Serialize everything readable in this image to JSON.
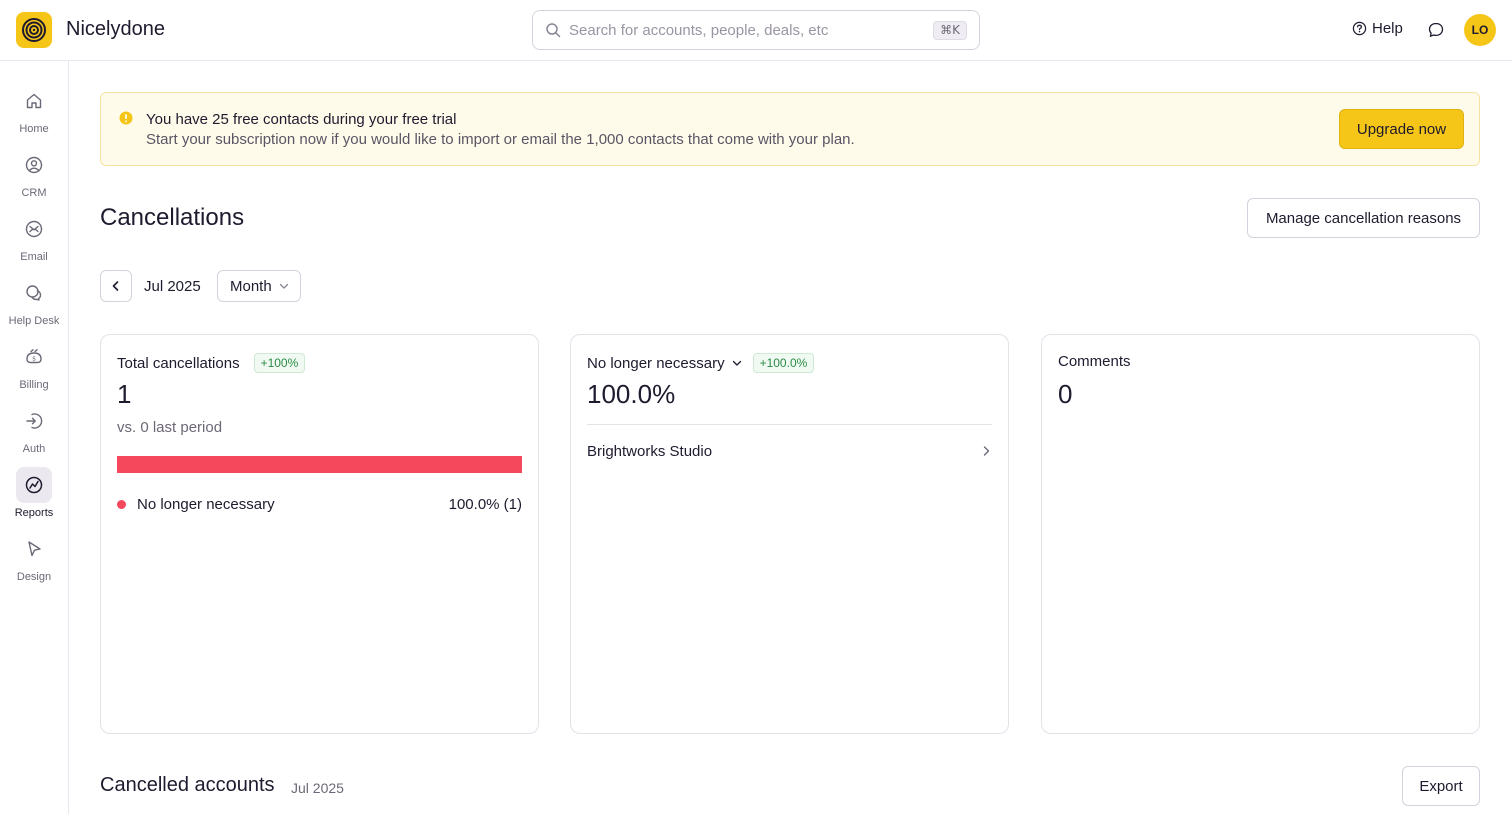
{
  "app": {
    "name": "Nicelydone",
    "logo_icon": "concentric-spiral-icon",
    "brand_color": "#f5c518"
  },
  "header": {
    "search": {
      "placeholder": "Search for accounts, people, deals, etc",
      "value": "",
      "shortcut": "⌘K"
    },
    "help_label": "Help",
    "avatar_initials": "LO"
  },
  "sidebar": {
    "items": [
      {
        "label": "Home",
        "icon": "home-icon",
        "active": false
      },
      {
        "label": "CRM",
        "icon": "user-circle-icon",
        "active": false
      },
      {
        "label": "Email",
        "icon": "mail-icon",
        "active": false
      },
      {
        "label": "Help Desk",
        "icon": "chat-bubbles-icon",
        "active": false
      },
      {
        "label": "Billing",
        "icon": "billing-icon",
        "active": false
      },
      {
        "label": "Auth",
        "icon": "login-icon",
        "active": false
      },
      {
        "label": "Reports",
        "icon": "chart-icon",
        "active": true
      },
      {
        "label": "Design",
        "icon": "cursor-icon",
        "active": false
      }
    ]
  },
  "banner": {
    "title": "You have 25 free contacts during your free trial",
    "text": "Start your subscription now if you would like to import or email the 1,000 contacts that come with your plan.",
    "button_label": "Upgrade now",
    "icon": "info-icon"
  },
  "page": {
    "title": "Cancellations",
    "manage_button_label": "Manage cancellation reasons",
    "period_label": "Jul 2025",
    "granularity": "Month"
  },
  "cards": {
    "total": {
      "title": "Total cancellations",
      "badge": "+100%",
      "value": "1",
      "comparison": "vs. 0 last period",
      "bar_fraction": 1.0,
      "bar_color": "#f5485d",
      "legend_label": "No longer necessary",
      "legend_value": "100.0% (1)"
    },
    "reason": {
      "title": "No longer necessary",
      "badge": "+100.0%",
      "value": "100.0%",
      "account": "Brightworks Studio"
    },
    "comments": {
      "title": "Comments",
      "value": "0"
    }
  },
  "cancelled_accounts": {
    "title": "Cancelled accounts",
    "period": "Jul 2025",
    "export_label": "Export"
  }
}
